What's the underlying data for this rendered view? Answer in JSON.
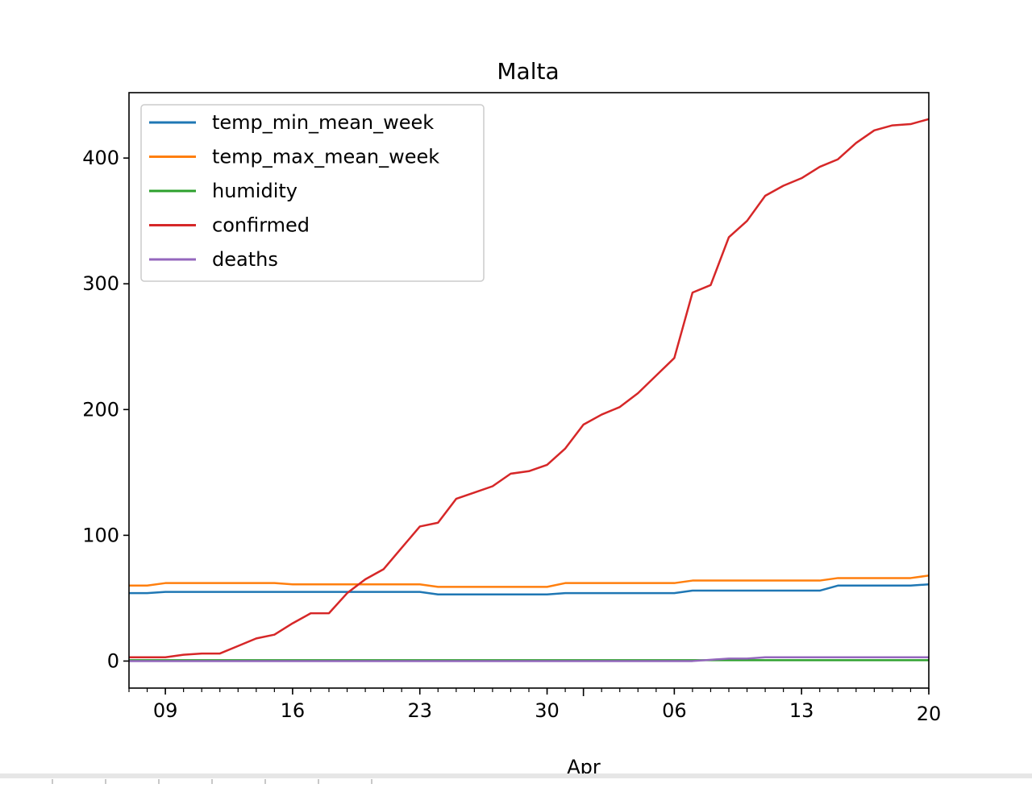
{
  "chart_data": {
    "type": "line",
    "title": "Malta",
    "xlabel": "Apr",
    "ylabel": "",
    "ylim": [
      -21.5,
      452
    ],
    "x_start": "2020-03-07",
    "x_end": "2020-04-20",
    "xticks_major": [
      {
        "date": "2020-03-09",
        "label": "09"
      },
      {
        "date": "2020-03-16",
        "label": "16"
      },
      {
        "date": "2020-03-23",
        "label": "23"
      },
      {
        "date": "2020-03-30",
        "label": "30"
      },
      {
        "date": "2020-04-06",
        "label": "06"
      },
      {
        "date": "2020-04-13",
        "label": "13"
      },
      {
        "date": "2020-04-20",
        "label": "20"
      }
    ],
    "yticks": [
      0,
      100,
      200,
      300,
      400
    ],
    "legend_position": "top-left",
    "grid": false,
    "series": [
      {
        "name": "temp_min_mean_week",
        "color": "#1f77b4",
        "values": [
          54,
          54,
          55,
          55,
          55,
          55,
          55,
          55,
          55,
          55,
          55,
          55,
          55,
          55,
          55,
          55,
          55,
          53,
          53,
          53,
          53,
          53,
          53,
          53,
          54,
          54,
          54,
          54,
          54,
          54,
          54,
          56,
          56,
          56,
          56,
          56,
          56,
          56,
          56,
          60,
          60,
          60,
          60,
          60,
          61
        ]
      },
      {
        "name": "temp_max_mean_week",
        "color": "#ff7f0e",
        "values": [
          60,
          60,
          62,
          62,
          62,
          62,
          62,
          62,
          62,
          61,
          61,
          61,
          61,
          61,
          61,
          61,
          61,
          59,
          59,
          59,
          59,
          59,
          59,
          59,
          62,
          62,
          62,
          62,
          62,
          62,
          62,
          64,
          64,
          64,
          64,
          64,
          64,
          64,
          64,
          66,
          66,
          66,
          66,
          66,
          68
        ]
      },
      {
        "name": "humidity",
        "color": "#2ca02c",
        "values": [
          0.7,
          0.7,
          0.7,
          0.7,
          0.7,
          0.7,
          0.7,
          0.7,
          0.7,
          0.7,
          0.7,
          0.7,
          0.7,
          0.7,
          0.7,
          0.7,
          0.7,
          0.7,
          0.7,
          0.7,
          0.7,
          0.7,
          0.7,
          0.7,
          0.7,
          0.7,
          0.7,
          0.7,
          0.7,
          0.7,
          0.7,
          0.7,
          0.7,
          0.7,
          0.7,
          0.7,
          0.7,
          0.7,
          0.7,
          0.7,
          0.7,
          0.7,
          0.7,
          0.7,
          0.7
        ]
      },
      {
        "name": "confirmed",
        "color": "#d62728",
        "values": [
          3,
          3,
          3,
          5,
          6,
          6,
          12,
          18,
          21,
          30,
          38,
          38,
          54,
          65,
          73,
          90,
          107,
          110,
          129,
          134,
          139,
          149,
          151,
          156,
          169,
          188,
          196,
          202,
          213,
          227,
          241,
          293,
          299,
          337,
          350,
          370,
          378,
          384,
          393,
          399,
          412,
          422,
          426,
          427,
          431
        ]
      },
      {
        "name": "deaths",
        "color": "#9467bd",
        "values": [
          0,
          0,
          0,
          0,
          0,
          0,
          0,
          0,
          0,
          0,
          0,
          0,
          0,
          0,
          0,
          0,
          0,
          0,
          0,
          0,
          0,
          0,
          0,
          0,
          0,
          0,
          0,
          0,
          0,
          0,
          0,
          0,
          1,
          2,
          2,
          3,
          3,
          3,
          3,
          3,
          3,
          3,
          3,
          3,
          3
        ]
      }
    ]
  }
}
